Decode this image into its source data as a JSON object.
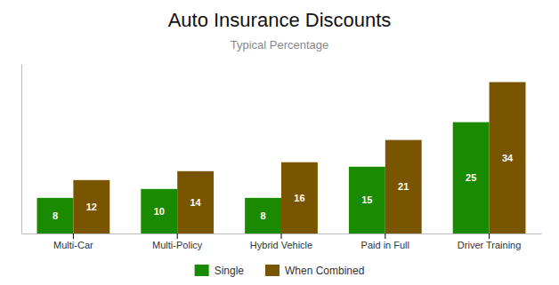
{
  "chart_data": {
    "type": "bar",
    "title": "Auto Insurance Discounts",
    "subtitle": "Typical Percentage",
    "categories": [
      "Multi-Car",
      "Multi-Policy",
      "Hybrid Vehicle",
      "Paid in Full",
      "Driver Training"
    ],
    "series": [
      {
        "name": "Single",
        "color": "#1a8a00",
        "values": [
          8,
          10,
          8,
          15,
          25
        ]
      },
      {
        "name": "When Combined",
        "color": "#7a5500",
        "values": [
          12,
          14,
          16,
          21,
          34
        ]
      }
    ],
    "ylim": [
      0,
      38.08
    ],
    "grid": false,
    "legend": "bottom",
    "data_labels": true,
    "tick_labels": "x"
  }
}
